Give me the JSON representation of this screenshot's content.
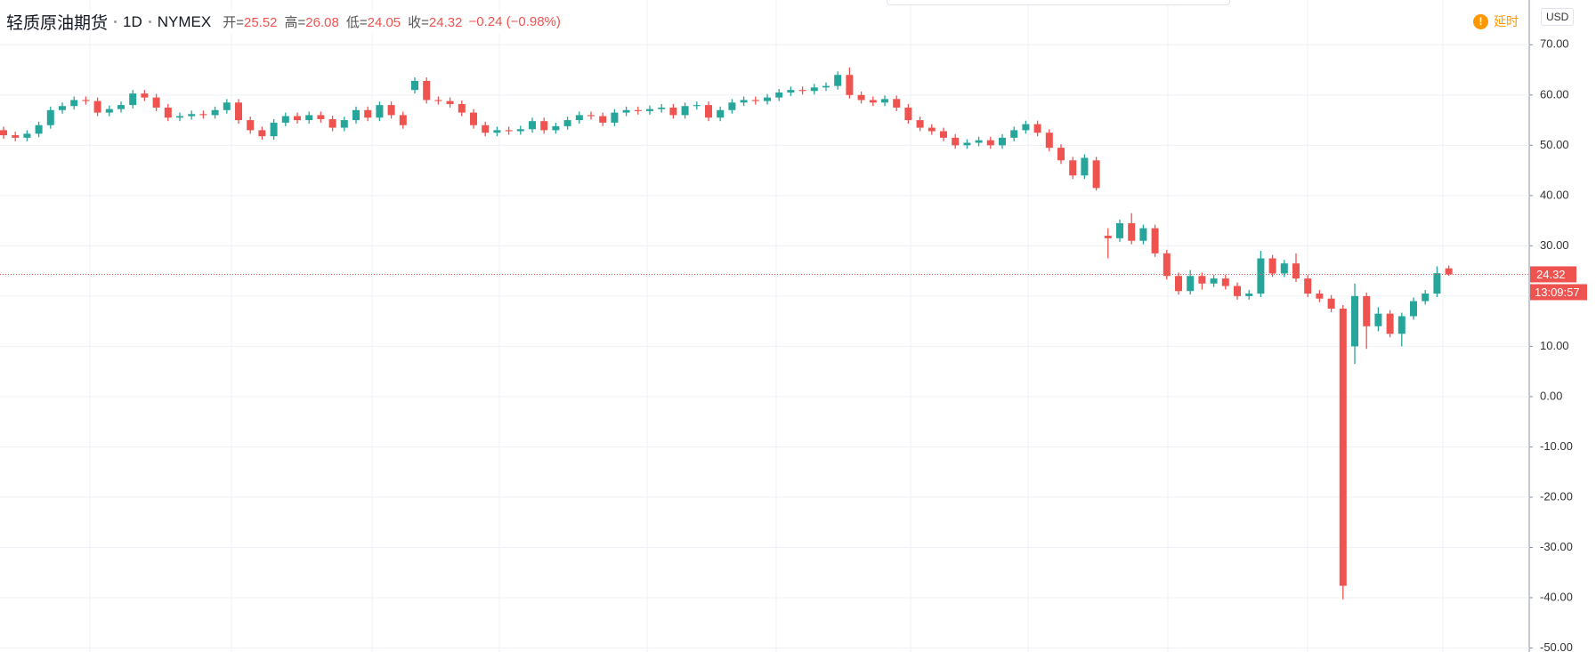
{
  "chart_data": {
    "type": "candlestick",
    "title": "轻质原油期货",
    "interval": "1D",
    "exchange": "NYMEX",
    "ohlc_legend": [
      {
        "label": "开=",
        "value": 25.52
      },
      {
        "label": "高=",
        "value": 26.08
      },
      {
        "label": "低=",
        "value": 24.05
      },
      {
        "label": "收=",
        "value": 24.32
      }
    ],
    "change": "−0.24 (−0.98%)",
    "delay_label": "延时",
    "currency": "USD",
    "last_price": 24.32,
    "countdown": "13:09:57",
    "up_color": "#26a69a",
    "down_color": "#ef5350",
    "ylim": [
      -50.8,
      78.9
    ],
    "yticks": [
      {
        "value": 70,
        "label": "70.00"
      },
      {
        "value": 60,
        "label": "60.00"
      },
      {
        "value": 50,
        "label": "50.00"
      },
      {
        "value": 40,
        "label": "40.00"
      },
      {
        "value": 30,
        "label": "30.00"
      },
      {
        "value": 20,
        "label": "20.00"
      },
      {
        "value": 10,
        "label": "10.00"
      },
      {
        "value": 0,
        "label": "0.00"
      },
      {
        "value": -10,
        "label": "-10.00"
      },
      {
        "value": -20,
        "label": "-20.00"
      },
      {
        "value": -30,
        "label": "-30.00"
      },
      {
        "value": -40,
        "label": "-40.00"
      },
      {
        "value": -50,
        "label": "-50.00"
      }
    ],
    "grid": true,
    "open": [
      53.0,
      52.0,
      51.5,
      52.3,
      54.0,
      57.0,
      57.8,
      59.0,
      58.8,
      56.5,
      57.2,
      58.0,
      60.3,
      59.5,
      57.5,
      55.5,
      55.8,
      56.2,
      56.0,
      57.0,
      58.5,
      55.0,
      53.0,
      51.8,
      54.5,
      55.8,
      55.0,
      56.0,
      55.2,
      53.5,
      55.0,
      57.0,
      55.5,
      58.0,
      56.0,
      61.0,
      62.8,
      59.0,
      58.8,
      58.2,
      56.5,
      54.0,
      52.5,
      53.0,
      52.8,
      53.2,
      54.8,
      53.0,
      53.8,
      55.0,
      56.0,
      55.8,
      54.5,
      56.5,
      57.0,
      56.8,
      57.2,
      57.5,
      56.0,
      57.8,
      58.0,
      55.5,
      57.0,
      58.5,
      59.0,
      58.8,
      59.5,
      60.5,
      61.0,
      60.8,
      61.5,
      61.8,
      64.0,
      60.0,
      59.0,
      58.5,
      59.2,
      57.5,
      55.0,
      53.5,
      52.8,
      51.5,
      50.0,
      50.5,
      51.0,
      50.0,
      51.5,
      53.0,
      54.2,
      52.5,
      49.5,
      47.0,
      44.0,
      47.0,
      32.0,
      31.5,
      34.5,
      31.0,
      33.5,
      28.5,
      24.0,
      21.0,
      24.0,
      22.5,
      23.5,
      22.0,
      20.0,
      20.5,
      27.5,
      24.5,
      26.5,
      23.5,
      20.5,
      19.5,
      17.5,
      10.0,
      20.0,
      14.0,
      16.5,
      12.5,
      16.0,
      19.0,
      20.5,
      25.52
    ],
    "high": [
      53.7,
      52.7,
      53.0,
      54.7,
      57.7,
      58.5,
      59.7,
      59.7,
      59.5,
      57.9,
      58.7,
      61.0,
      61.0,
      60.2,
      58.2,
      56.5,
      56.9,
      56.9,
      57.7,
      59.2,
      59.2,
      55.7,
      53.7,
      55.2,
      56.5,
      56.5,
      56.7,
      56.7,
      55.9,
      55.7,
      57.7,
      57.7,
      58.7,
      58.7,
      56.7,
      63.5,
      63.5,
      59.7,
      59.5,
      58.9,
      57.2,
      54.7,
      53.7,
      53.7,
      53.9,
      55.5,
      55.5,
      54.5,
      55.7,
      56.7,
      56.7,
      56.5,
      57.2,
      57.7,
      57.7,
      57.9,
      58.2,
      58.2,
      58.5,
      58.7,
      58.7,
      57.7,
      59.2,
      59.7,
      59.7,
      60.2,
      61.2,
      61.7,
      61.7,
      62.2,
      62.5,
      64.7,
      65.5,
      60.7,
      59.7,
      59.9,
      59.9,
      58.2,
      55.7,
      54.2,
      53.5,
      52.2,
      51.2,
      51.7,
      51.7,
      52.2,
      53.7,
      54.9,
      54.9,
      53.2,
      50.2,
      47.7,
      48.2,
      47.7,
      33.5,
      35.2,
      36.5,
      34.2,
      34.2,
      29.2,
      24.7,
      25.2,
      24.7,
      24.2,
      24.2,
      22.7,
      21.2,
      29.0,
      28.2,
      27.2,
      28.5,
      24.2,
      21.2,
      20.2,
      18.2,
      22.5,
      20.7,
      17.8,
      17.2,
      16.7,
      19.7,
      21.2,
      25.9,
      26.08
    ],
    "low": [
      51.3,
      50.8,
      50.8,
      51.6,
      53.3,
      56.3,
      57.1,
      58.1,
      55.8,
      55.8,
      56.5,
      57.3,
      58.8,
      56.8,
      54.8,
      54.8,
      55.1,
      55.3,
      55.3,
      56.3,
      54.3,
      52.3,
      51.1,
      51.1,
      53.8,
      54.3,
      54.3,
      54.5,
      52.8,
      52.8,
      54.3,
      54.8,
      54.8,
      55.3,
      53.3,
      60.3,
      58.3,
      58.1,
      57.5,
      55.8,
      53.3,
      51.8,
      51.8,
      52.1,
      52.1,
      52.5,
      52.3,
      52.3,
      53.1,
      54.3,
      55.1,
      53.8,
      53.8,
      55.8,
      56.1,
      56.1,
      56.5,
      55.3,
      55.3,
      57.1,
      54.8,
      54.8,
      56.3,
      57.8,
      58.1,
      58.1,
      58.8,
      59.8,
      60.1,
      60.1,
      60.8,
      61.1,
      59.3,
      58.3,
      57.8,
      57.8,
      56.8,
      54.3,
      52.8,
      52.1,
      50.8,
      49.3,
      49.3,
      49.8,
      49.3,
      49.3,
      50.8,
      52.3,
      51.8,
      48.8,
      46.3,
      43.3,
      43.3,
      41.0,
      27.5,
      30.8,
      30.3,
      30.3,
      27.8,
      23.3,
      20.3,
      20.3,
      21.3,
      21.8,
      21.3,
      19.3,
      19.3,
      19.8,
      23.8,
      23.8,
      22.8,
      19.8,
      18.8,
      16.8,
      -40.32,
      6.5,
      9.5,
      13.0,
      11.8,
      10.0,
      15.3,
      18.3,
      19.8,
      24.05
    ],
    "close": [
      52.0,
      51.5,
      52.3,
      54.0,
      57.0,
      57.8,
      59.0,
      58.8,
      56.5,
      57.2,
      58.0,
      60.3,
      59.5,
      57.5,
      55.5,
      55.8,
      56.2,
      56.0,
      57.0,
      58.5,
      55.0,
      53.0,
      51.8,
      54.5,
      55.8,
      55.0,
      56.0,
      55.2,
      53.5,
      55.0,
      57.0,
      55.5,
      58.0,
      56.0,
      54.0,
      62.8,
      59.0,
      58.8,
      58.2,
      56.5,
      54.0,
      52.5,
      53.0,
      52.8,
      53.2,
      54.8,
      53.0,
      53.8,
      55.0,
      56.0,
      55.8,
      54.5,
      56.5,
      57.0,
      56.8,
      57.2,
      57.5,
      56.0,
      57.8,
      58.0,
      55.5,
      57.0,
      58.5,
      59.0,
      58.8,
      59.5,
      60.5,
      61.0,
      60.8,
      61.5,
      61.8,
      64.0,
      60.0,
      59.0,
      58.5,
      59.2,
      57.5,
      55.0,
      53.5,
      52.8,
      51.5,
      50.0,
      50.5,
      51.0,
      50.0,
      51.5,
      53.0,
      54.2,
      52.5,
      49.5,
      47.0,
      44.0,
      47.5,
      41.5,
      31.5,
      34.5,
      31.0,
      33.5,
      28.5,
      24.0,
      21.0,
      24.0,
      22.5,
      23.5,
      22.0,
      20.0,
      20.5,
      27.5,
      24.5,
      26.5,
      23.5,
      20.5,
      19.5,
      17.5,
      -37.63,
      20.0,
      14.0,
      16.5,
      12.5,
      16.0,
      19.0,
      20.5,
      24.56,
      24.32
    ]
  }
}
